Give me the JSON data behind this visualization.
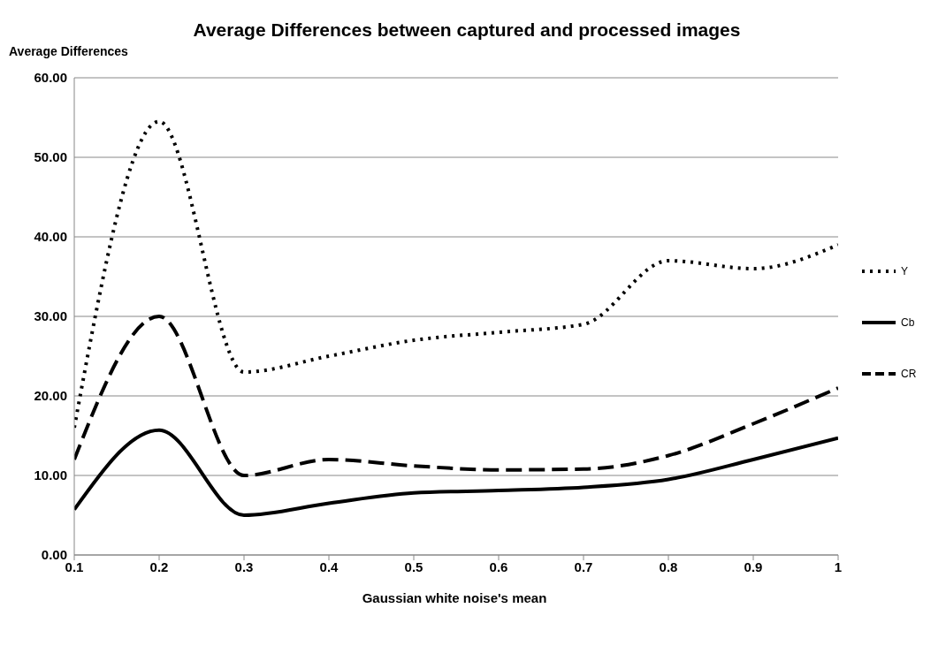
{
  "chart_data": {
    "type": "line",
    "title": "Average Differences between captured and processed images",
    "ylabel": "Average Differences",
    "xlabel": "Gaussian white noise's mean",
    "x": [
      0.1,
      0.2,
      0.3,
      0.4,
      0.5,
      0.6,
      0.7,
      0.8,
      0.9,
      1
    ],
    "series": [
      {
        "name": "Y",
        "color": "#000000",
        "line_style": "dotted",
        "values": [
          16,
          54.5,
          23,
          25,
          27,
          28,
          29,
          37,
          36,
          39
        ]
      },
      {
        "name": "Cb",
        "color": "#000000",
        "line_style": "solid",
        "values": [
          5.7,
          15.7,
          5,
          6.5,
          7.8,
          8.1,
          8.5,
          9.5,
          12,
          14.7
        ]
      },
      {
        "name": "CR",
        "color": "#000000",
        "line_style": "dashed",
        "values": [
          12,
          30,
          10,
          12,
          11.2,
          10.7,
          10.8,
          12.5,
          16.5,
          21
        ]
      }
    ],
    "xlim": [
      0.1,
      1
    ],
    "xticks": [
      0.1,
      0.2,
      0.3,
      0.4,
      0.5,
      0.6,
      0.7,
      0.8,
      0.9,
      1
    ],
    "ylim": [
      0,
      60
    ],
    "yticks": [
      {
        "value": 0,
        "label": "0.00"
      },
      {
        "value": 10,
        "label": "10.00"
      },
      {
        "value": 20,
        "label": "20.00"
      },
      {
        "value": 30,
        "label": "30.00"
      },
      {
        "value": 40,
        "label": "40.00"
      },
      {
        "value": 50,
        "label": "50.00"
      },
      {
        "value": 60,
        "label": "60.00"
      }
    ],
    "grid": "y",
    "legend": "right",
    "marker": "none"
  }
}
